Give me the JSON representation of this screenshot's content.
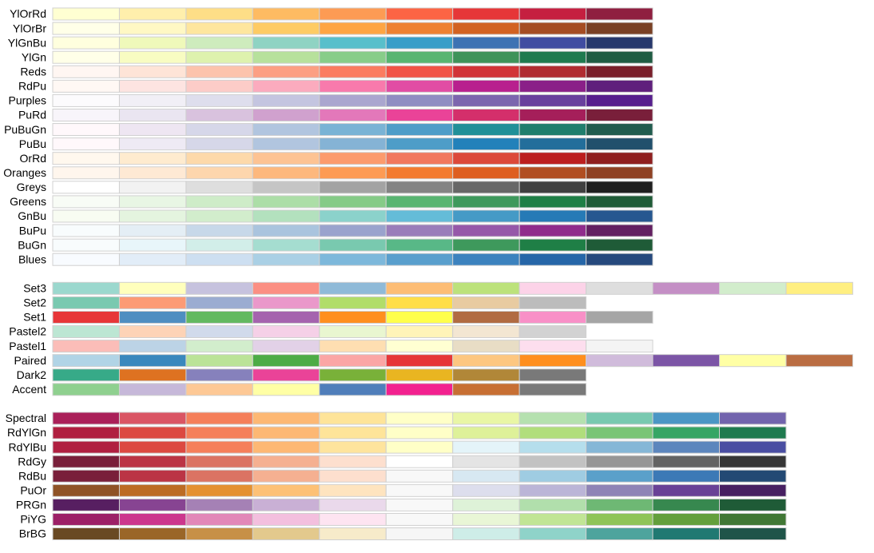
{
  "groups": [
    {
      "palettes": [
        {
          "name": "YlOrRd",
          "colors": [
            "#FFFFCC",
            "#FFEDA0",
            "#FED976",
            "#FEB24C",
            "#FD8D3C",
            "#FC4E2A",
            "#E31A1C",
            "#BD0026",
            "#800026"
          ]
        },
        {
          "name": "YlOrBr",
          "colors": [
            "#FFFFE5",
            "#FFF7BC",
            "#FEE391",
            "#FEC44F",
            "#FE9929",
            "#EC7014",
            "#CC4C02",
            "#993404",
            "#662506"
          ]
        },
        {
          "name": "YlGnBu",
          "colors": [
            "#FFFFD9",
            "#EDF8B1",
            "#C7E9B4",
            "#7FCDBB",
            "#41B6C4",
            "#1D91C0",
            "#225EA8",
            "#253494",
            "#081D58"
          ]
        },
        {
          "name": "YlGn",
          "colors": [
            "#FFFFE5",
            "#F7FCB9",
            "#D9F0A3",
            "#ADDD8E",
            "#78C679",
            "#41AB5D",
            "#238443",
            "#006837",
            "#004529"
          ]
        },
        {
          "name": "Reds",
          "colors": [
            "#FFF5F0",
            "#FEE0D2",
            "#FCBBA1",
            "#FC9272",
            "#FB6A4A",
            "#EF3B2C",
            "#CB181D",
            "#A50F15",
            "#67000D"
          ]
        },
        {
          "name": "RdPu",
          "colors": [
            "#FFF7F3",
            "#FDE0DD",
            "#FCC5C0",
            "#FA9FB5",
            "#F768A1",
            "#DD3497",
            "#AE017E",
            "#7A0177",
            "#49006A"
          ]
        },
        {
          "name": "Purples",
          "colors": [
            "#FCFBFD",
            "#EFEDF5",
            "#DADAEB",
            "#BCBDDC",
            "#9E9AC8",
            "#807DBA",
            "#6A51A3",
            "#54278F",
            "#3F007D"
          ]
        },
        {
          "name": "PuRd",
          "colors": [
            "#F7F4F9",
            "#E7E1EF",
            "#D4B9DA",
            "#C994C7",
            "#DF65B0",
            "#E7298A",
            "#CE1256",
            "#980043",
            "#67001F"
          ]
        },
        {
          "name": "PuBuGn",
          "colors": [
            "#FFF7FB",
            "#ECE2F0",
            "#D0D1E6",
            "#A6BDDB",
            "#67A9CF",
            "#3690C0",
            "#02818A",
            "#016C59",
            "#014636"
          ]
        },
        {
          "name": "PuBu",
          "colors": [
            "#FFF7FB",
            "#ECE7F2",
            "#D0D1E6",
            "#A6BDDB",
            "#74A9CF",
            "#3690C0",
            "#0570B0",
            "#045A8D",
            "#023858"
          ]
        },
        {
          "name": "OrRd",
          "colors": [
            "#FFF7EC",
            "#FEE8C8",
            "#FDD49E",
            "#FDBB84",
            "#FC8D59",
            "#EF6548",
            "#D7301F",
            "#B30000",
            "#7F0000"
          ]
        },
        {
          "name": "Oranges",
          "colors": [
            "#FFF5EB",
            "#FEE6CE",
            "#FDD0A2",
            "#FDAE6B",
            "#FD8D3C",
            "#F16913",
            "#D94801",
            "#A63603",
            "#7F2704"
          ]
        },
        {
          "name": "Greys",
          "colors": [
            "#FFFFFF",
            "#F0F0F0",
            "#D9D9D9",
            "#BDBDBD",
            "#969696",
            "#737373",
            "#525252",
            "#252525",
            "#000000"
          ]
        },
        {
          "name": "Greens",
          "colors": [
            "#F7FCF5",
            "#E5F5E0",
            "#C7E9C0",
            "#A1D99B",
            "#74C476",
            "#41AB5D",
            "#238B45",
            "#006D2C",
            "#00441B"
          ]
        },
        {
          "name": "GnBu",
          "colors": [
            "#F7FCF0",
            "#E0F3DB",
            "#CCEBC5",
            "#A8DDB5",
            "#7BCCC4",
            "#4EB3D3",
            "#2B8CBE",
            "#0868AC",
            "#084081"
          ]
        },
        {
          "name": "BuPu",
          "colors": [
            "#F7FCFD",
            "#E0ECF4",
            "#BFD3E6",
            "#9EBCDA",
            "#8C96C6",
            "#8C6BB1",
            "#88419D",
            "#810F7C",
            "#4D004B"
          ]
        },
        {
          "name": "BuGn",
          "colors": [
            "#F7FCFD",
            "#E5F5F9",
            "#CCECE6",
            "#99D8C9",
            "#66C2A4",
            "#41AE76",
            "#238B45",
            "#006D2C",
            "#00441B"
          ]
        },
        {
          "name": "Blues",
          "colors": [
            "#F7FBFF",
            "#DEEBF7",
            "#C6DBEF",
            "#9ECAE1",
            "#6BAED6",
            "#4292C6",
            "#2171B5",
            "#08519C",
            "#08306B"
          ]
        }
      ]
    },
    {
      "palettes": [
        {
          "name": "Set3",
          "colors": [
            "#8DD3C7",
            "#FFFFB3",
            "#BEBADA",
            "#FB8072",
            "#80B1D3",
            "#FDB462",
            "#B3DE69",
            "#FCCDE5",
            "#D9D9D9",
            "#BC80BD",
            "#CCEBC5",
            "#FFED6F"
          ]
        },
        {
          "name": "Set2",
          "colors": [
            "#66C2A5",
            "#FC8D62",
            "#8DA0CB",
            "#E78AC3",
            "#A6D854",
            "#FFD92F",
            "#E5C494",
            "#B3B3B3"
          ]
        },
        {
          "name": "Set1",
          "colors": [
            "#E41A1C",
            "#377EB8",
            "#4DAF4A",
            "#984EA3",
            "#FF7F00",
            "#FFFF33",
            "#A65628",
            "#F781BF",
            "#999999"
          ]
        },
        {
          "name": "Pastel2",
          "colors": [
            "#B3E2CD",
            "#FDCDAC",
            "#CBD5E8",
            "#F4CAE4",
            "#E6F5C9",
            "#FFF2AE",
            "#F1E2CC",
            "#CCCCCC"
          ]
        },
        {
          "name": "Pastel1",
          "colors": [
            "#FBB4AE",
            "#B3CDE3",
            "#CCEBC5",
            "#DECBE4",
            "#FED9A6",
            "#FFFFCC",
            "#E5D8BD",
            "#FDDAEC",
            "#F2F2F2"
          ]
        },
        {
          "name": "Paired",
          "colors": [
            "#A6CEE3",
            "#1F78B4",
            "#B2DF8A",
            "#33A02C",
            "#FB9A99",
            "#E31A1C",
            "#FDBF6F",
            "#FF7F00",
            "#CAB2D6",
            "#6A3D9A",
            "#FFFF99",
            "#B15928"
          ]
        },
        {
          "name": "Dark2",
          "colors": [
            "#1B9E77",
            "#D95F02",
            "#7570B3",
            "#E7298A",
            "#66A61E",
            "#E6AB02",
            "#A6761D",
            "#666666"
          ]
        },
        {
          "name": "Accent",
          "colors": [
            "#7FC97F",
            "#BEAED4",
            "#FDC086",
            "#FFFF99",
            "#386CB0",
            "#F0027F",
            "#BF5B17",
            "#666666"
          ]
        }
      ]
    },
    {
      "palettes": [
        {
          "name": "Spectral",
          "colors": [
            "#9E0142",
            "#D53E4F",
            "#F46D43",
            "#FDAE61",
            "#FEE08B",
            "#FFFFBF",
            "#E6F598",
            "#ABDDA4",
            "#66C2A5",
            "#3288BD",
            "#5E4FA2"
          ]
        },
        {
          "name": "RdYlGn",
          "colors": [
            "#A50026",
            "#D73027",
            "#F46D43",
            "#FDAE61",
            "#FEE08B",
            "#FFFFBF",
            "#D9EF8B",
            "#A6D96A",
            "#66BD63",
            "#1A9850",
            "#006837"
          ]
        },
        {
          "name": "RdYlBu",
          "colors": [
            "#A50026",
            "#D73027",
            "#F46D43",
            "#FDAE61",
            "#FEE090",
            "#FFFFBF",
            "#E0F3F8",
            "#ABD9E9",
            "#74ADD1",
            "#4575B4",
            "#313695"
          ]
        },
        {
          "name": "RdGy",
          "colors": [
            "#67001F",
            "#B2182B",
            "#D6604D",
            "#F4A582",
            "#FDDBC7",
            "#FFFFFF",
            "#E0E0E0",
            "#BABABA",
            "#878787",
            "#4D4D4D",
            "#1A1A1A"
          ]
        },
        {
          "name": "RdBu",
          "colors": [
            "#67001F",
            "#B2182B",
            "#D6604D",
            "#F4A582",
            "#FDDBC7",
            "#F7F7F7",
            "#D1E5F0",
            "#92C5DE",
            "#4393C3",
            "#2166AC",
            "#053061"
          ]
        },
        {
          "name": "PuOr",
          "colors": [
            "#7F3B08",
            "#B35806",
            "#E08214",
            "#FDB863",
            "#FEE0B6",
            "#F7F7F7",
            "#D8DAEB",
            "#B2ABD2",
            "#8073AC",
            "#542788",
            "#2D004B"
          ]
        },
        {
          "name": "PRGn",
          "colors": [
            "#40004B",
            "#762A83",
            "#9970AB",
            "#C2A5CF",
            "#E7D4E8",
            "#F7F7F7",
            "#D9F0D3",
            "#A6DBA0",
            "#5AAE61",
            "#1B7837",
            "#00441B"
          ]
        },
        {
          "name": "PiYG",
          "colors": [
            "#8E0152",
            "#C51B7D",
            "#DE77AE",
            "#F1B6DA",
            "#FDE0EF",
            "#F7F7F7",
            "#E6F5D0",
            "#B8E186",
            "#7FBC41",
            "#4D9221",
            "#276419"
          ]
        },
        {
          "name": "BrBG",
          "colors": [
            "#543005",
            "#8C510A",
            "#BF812D",
            "#DFC27D",
            "#F6E8C3",
            "#F5F5F5",
            "#C7EAE5",
            "#80CDC1",
            "#35978F",
            "#01665E",
            "#003C30"
          ]
        }
      ]
    }
  ]
}
